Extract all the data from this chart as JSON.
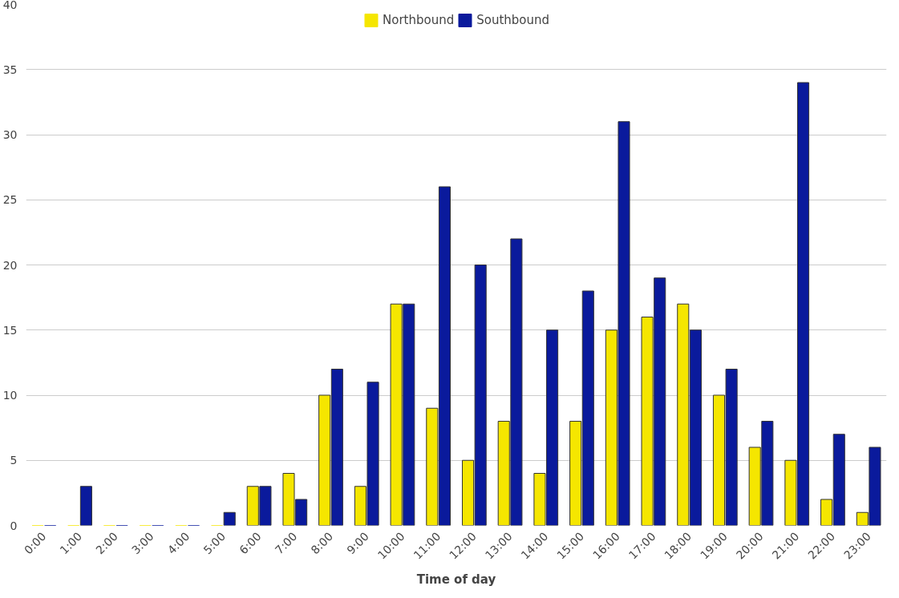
{
  "chart_data": {
    "type": "bar",
    "xlabel": "Time of day",
    "categories": [
      "0:00",
      "1:00",
      "2:00",
      "3:00",
      "4:00",
      "5:00",
      "6:00",
      "7:00",
      "8:00",
      "9:00",
      "10:00",
      "11:00",
      "12:00",
      "13:00",
      "14:00",
      "15:00",
      "16:00",
      "17:00",
      "18:00",
      "19:00",
      "20:00",
      "21:00",
      "22:00",
      "23:00"
    ],
    "series": [
      {
        "name": "Northbound",
        "color": "#f5e600",
        "values": [
          0,
          0,
          0,
          0,
          0,
          0,
          3,
          4,
          10,
          3,
          17,
          9,
          5,
          8,
          4,
          8,
          15,
          16,
          17,
          10,
          6,
          5,
          2,
          1
        ]
      },
      {
        "name": "Southbound",
        "color": "#0a1a9c",
        "values": [
          0,
          3,
          0,
          0,
          0,
          1,
          3,
          2,
          12,
          11,
          17,
          26,
          20,
          22,
          15,
          18,
          31,
          19,
          15,
          12,
          8,
          34,
          7,
          6
        ]
      }
    ],
    "ylim": [
      0,
      40
    ],
    "yticks": [
      0,
      5,
      10,
      15,
      20,
      25,
      30,
      35,
      40
    ],
    "grid": "y",
    "legend": "top"
  }
}
